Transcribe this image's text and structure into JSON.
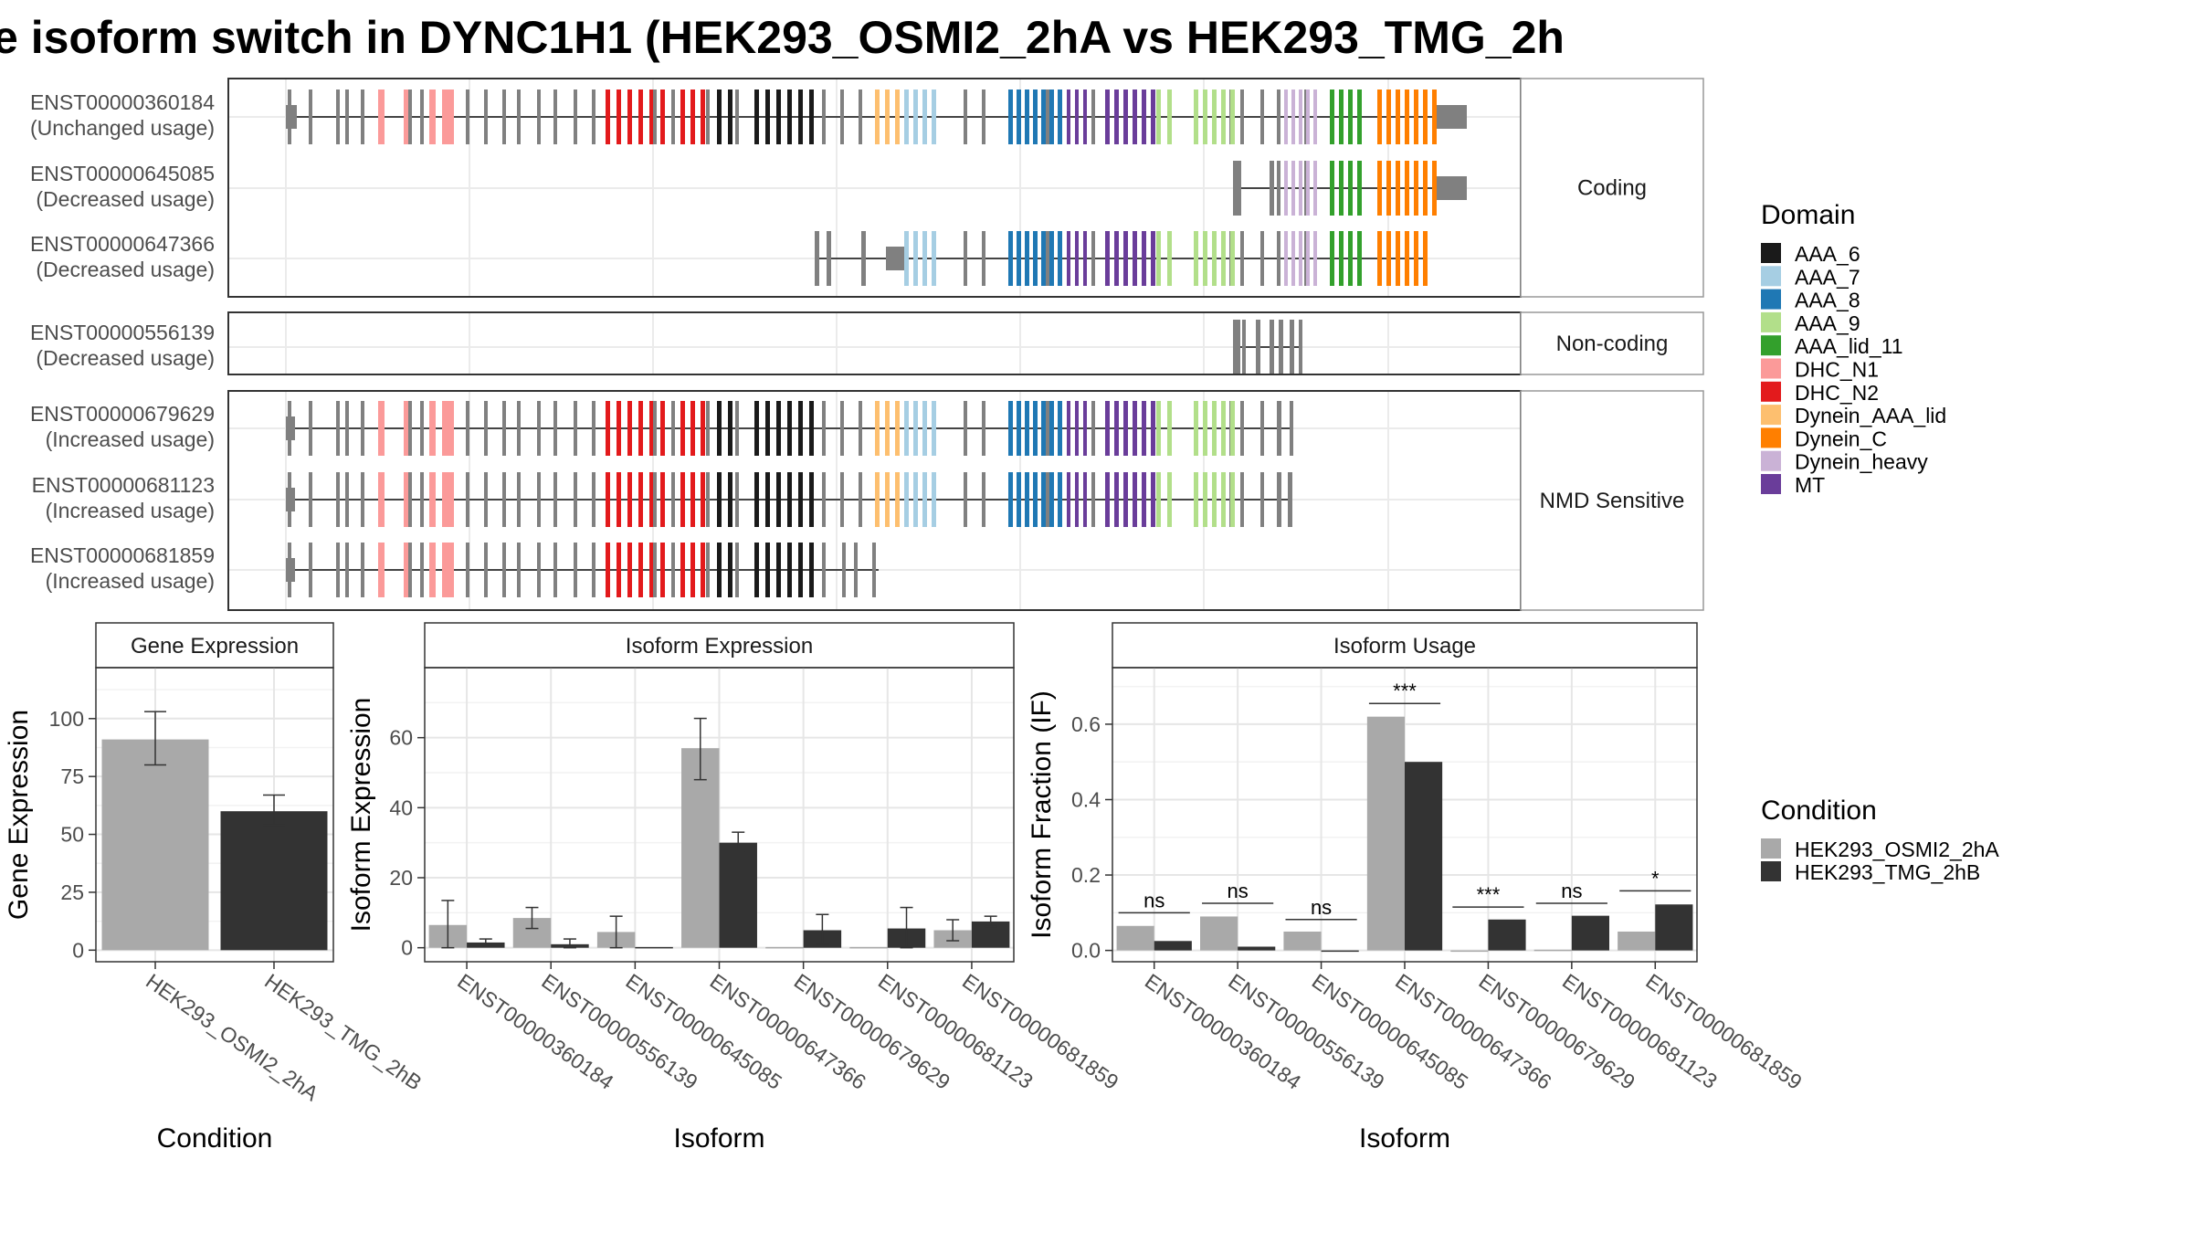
{
  "title": "e isoform switch in DYNC1H1 (HEK293_OSMI2_2hA vs HEK293_TMG_2h",
  "structure": {
    "groups": [
      {
        "label": "Coding",
        "transcripts": [
          {
            "id": "ENST00000360184",
            "usage": "(Unchanged usage)"
          },
          {
            "id": "ENST00000645085",
            "usage": "(Decreased usage)"
          },
          {
            "id": "ENST00000647366",
            "usage": "(Decreased usage)"
          }
        ]
      },
      {
        "label": "Non-coding",
        "transcripts": [
          {
            "id": "ENST00000556139",
            "usage": "(Decreased usage)"
          }
        ]
      },
      {
        "label": "NMD Sensitive",
        "transcripts": [
          {
            "id": "ENST00000679629",
            "usage": "(Increased usage)"
          },
          {
            "id": "ENST00000681123",
            "usage": "(Increased usage)"
          },
          {
            "id": "ENST00000681859",
            "usage": "(Increased usage)"
          }
        ]
      }
    ]
  },
  "domain_legend": {
    "title": "Domain",
    "items": [
      {
        "name": "AAA_6",
        "color": "#1a1a1a"
      },
      {
        "name": "AAA_7",
        "color": "#a6cee3"
      },
      {
        "name": "AAA_8",
        "color": "#1f78b4"
      },
      {
        "name": "AAA_9",
        "color": "#b2df8a"
      },
      {
        "name": "AAA_lid_11",
        "color": "#33a02c"
      },
      {
        "name": "DHC_N1",
        "color": "#fb9a99"
      },
      {
        "name": "DHC_N2",
        "color": "#e31a1c"
      },
      {
        "name": "Dynein_AAA_lid",
        "color": "#fdbf6f"
      },
      {
        "name": "Dynein_C",
        "color": "#ff7f00"
      },
      {
        "name": "Dynein_heavy",
        "color": "#cab2d6"
      },
      {
        "name": "MT",
        "color": "#6a3d9a"
      }
    ]
  },
  "condition_legend": {
    "title": "Condition",
    "items": [
      {
        "name": "HEK293_OSMI2_2hA",
        "color": "#a9a9a9"
      },
      {
        "name": "HEK293_TMG_2hB",
        "color": "#333333"
      }
    ]
  },
  "chart_data": [
    {
      "type": "bar",
      "title": "Gene Expression",
      "xlabel": "Condition",
      "ylabel": "Gene Expression",
      "categories": [
        "HEK293_OSMI2_2hA",
        "HEK293_TMG_2hB"
      ],
      "values": [
        91,
        60
      ],
      "error_low": [
        80,
        54
      ],
      "error_high": [
        103,
        67
      ],
      "yticks": [
        0,
        25,
        50,
        75,
        100
      ],
      "ylim": [
        -5,
        122
      ]
    },
    {
      "type": "bar",
      "title": "Isoform Expression",
      "xlabel": "Isoform",
      "ylabel": "Isoform Expression",
      "categories": [
        "ENST00000360184",
        "ENST00000556139",
        "ENST00000645085",
        "ENST00000647366",
        "ENST00000679629",
        "ENST00000681123",
        "ENST00000681859"
      ],
      "series": [
        {
          "values": [
            6.5,
            8.5,
            4.5,
            57,
            0.2,
            0.2,
            5
          ],
          "error_low": [
            0,
            5.5,
            0,
            48,
            null,
            null,
            2
          ],
          "error_high": [
            13.5,
            11.5,
            9,
            65.5,
            null,
            null,
            8
          ]
        },
        {
          "values": [
            1.5,
            1,
            0.2,
            30,
            5,
            5.5,
            7.5
          ],
          "error_low": [
            0.5,
            0,
            null,
            27.5,
            1,
            0,
            6
          ],
          "error_high": [
            2.5,
            2.5,
            null,
            33,
            9.5,
            11.5,
            9
          ]
        }
      ],
      "yticks": [
        0,
        20,
        40,
        60
      ],
      "ylim": [
        -4,
        80
      ]
    },
    {
      "type": "bar",
      "title": "Isoform Usage",
      "xlabel": "Isoform",
      "ylabel": "Isoform Fraction (IF)",
      "categories": [
        "ENST00000360184",
        "ENST00000556139",
        "ENST00000645085",
        "ENST00000647366",
        "ENST00000679629",
        "ENST00000681123",
        "ENST00000681859"
      ],
      "series": [
        {
          "values": [
            0.065,
            0.09,
            0.05,
            0.62,
            0,
            0.002,
            0.05
          ]
        },
        {
          "values": [
            0.025,
            0.01,
            0,
            0.5,
            0.082,
            0.092,
            0.122
          ]
        }
      ],
      "significance": [
        "ns",
        "ns",
        "ns",
        "***",
        "***",
        "ns",
        "*"
      ],
      "sig_levels": [
        0.1,
        0.125,
        0.082,
        0.655,
        0.115,
        0.125,
        0.158
      ],
      "yticks": [
        0.0,
        0.2,
        0.4,
        0.6
      ],
      "ylim": [
        -0.03,
        0.75
      ]
    }
  ]
}
